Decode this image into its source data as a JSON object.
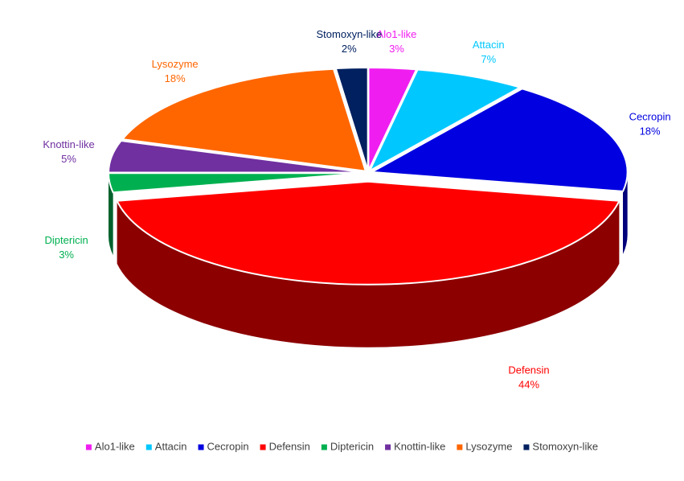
{
  "chart_data": {
    "type": "pie3d",
    "categories": [
      "Alo1-like",
      "Attacin",
      "Cecropin",
      "Defensin",
      "Diptericin",
      "Knottin-like",
      "Lysozyme",
      "Stomoxyn-like"
    ],
    "values": [
      3,
      7,
      18,
      44,
      3,
      5,
      18,
      2
    ],
    "value_labels": [
      "3%",
      "7%",
      "18%",
      "44%",
      "3%",
      "5%",
      "18%",
      "2%"
    ],
    "colors": [
      "#f01df0",
      "#00c8ff",
      "#0000e0",
      "#ff0000",
      "#00b050",
      "#7030a0",
      "#ff6600",
      "#002060"
    ],
    "legend": "bottom"
  }
}
